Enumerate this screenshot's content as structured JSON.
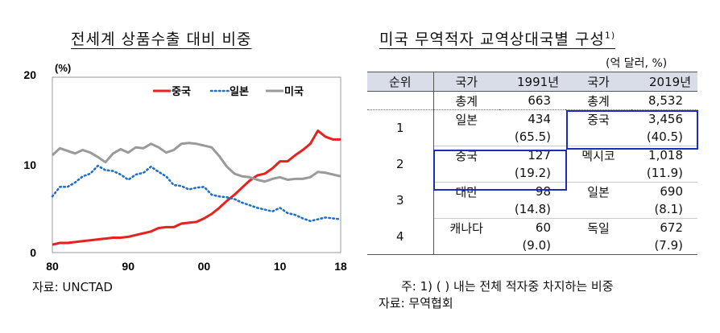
{
  "chart_title": "전세계 상품수출 대비 비중",
  "chart_source": "자료: UNCTAD",
  "table_title": "미국 무역적자 교역상대국별 구성",
  "table_title_sup": "1)",
  "table_unit": "(억 달러, %)",
  "table_note": "주: 1) ( ) 내는 전체 적자중 차지하는 비중",
  "table_source": "자료: 무역협회",
  "table": {
    "headers": [
      "순위",
      "국가",
      "1991년",
      "국가",
      "2019년"
    ],
    "total": {
      "label_1991": "총계",
      "value_1991": "663",
      "label_2019": "총계",
      "value_2019": "8,532"
    },
    "rows": [
      {
        "rank": "1",
        "country_1991": "일본",
        "value_1991": "434",
        "share_1991": "(65.5)",
        "country_2019": "중국",
        "value_2019": "3,456",
        "share_2019": "(40.5)"
      },
      {
        "rank": "2",
        "country_1991": "중국",
        "value_1991": "127",
        "share_1991": "(19.2)",
        "country_2019": "멕시코",
        "value_2019": "1,018",
        "share_2019": "(11.9)"
      },
      {
        "rank": "3",
        "country_1991": "대만",
        "value_1991": "98",
        "share_1991": "(14.8)",
        "country_2019": "일본",
        "value_2019": "690",
        "share_2019": "(8.1)"
      },
      {
        "rank": "4",
        "country_1991": "캐나다",
        "value_1991": "60",
        "share_1991": "(9.0)",
        "country_2019": "독일",
        "value_2019": "672",
        "share_2019": "(7.9)"
      }
    ]
  },
  "chart_data": {
    "type": "line",
    "ylabel": "(%)",
    "ylim": [
      0,
      20
    ],
    "xlim": [
      1980,
      2018
    ],
    "x_ticks": [
      {
        "value": 1980,
        "label": "80"
      },
      {
        "value": 1990,
        "label": "90"
      },
      {
        "value": 2000,
        "label": "00"
      },
      {
        "value": 2010,
        "label": "10"
      },
      {
        "value": 2018,
        "label": "18"
      }
    ],
    "y_ticks": [
      {
        "value": 0,
        "label": "0"
      },
      {
        "value": 10,
        "label": "10"
      },
      {
        "value": 20,
        "label": "20"
      }
    ],
    "legend_position": "top-right",
    "x": [
      1980,
      1981,
      1982,
      1983,
      1984,
      1985,
      1986,
      1987,
      1988,
      1989,
      1990,
      1991,
      1992,
      1993,
      1994,
      1995,
      1996,
      1997,
      1998,
      1999,
      2000,
      2001,
      2002,
      2003,
      2004,
      2005,
      2006,
      2007,
      2008,
      2009,
      2010,
      2011,
      2012,
      2013,
      2014,
      2015,
      2016,
      2017,
      2018
    ],
    "series": [
      {
        "name": "중국",
        "color": "#e8211e",
        "style": "solid",
        "values": [
          0.9,
          1.1,
          1.1,
          1.2,
          1.3,
          1.4,
          1.5,
          1.6,
          1.7,
          1.7,
          1.8,
          2.0,
          2.2,
          2.4,
          2.8,
          2.9,
          2.9,
          3.3,
          3.4,
          3.5,
          3.9,
          4.4,
          5.1,
          5.9,
          6.6,
          7.4,
          8.2,
          8.8,
          9.0,
          9.6,
          10.4,
          10.4,
          11.1,
          11.7,
          12.4,
          13.9,
          13.2,
          12.9,
          12.9
        ]
      },
      {
        "name": "일본",
        "color": "#1f6fc5",
        "style": "dotted",
        "values": [
          6.4,
          7.5,
          7.5,
          8.0,
          8.7,
          9.0,
          9.9,
          9.4,
          9.3,
          8.9,
          8.3,
          8.9,
          9.1,
          9.8,
          9.2,
          8.7,
          7.7,
          7.6,
          7.2,
          7.4,
          7.5,
          6.6,
          6.4,
          6.3,
          6.1,
          5.7,
          5.4,
          5.1,
          4.9,
          4.7,
          5.1,
          4.5,
          4.3,
          3.9,
          3.6,
          3.8,
          4.0,
          3.9,
          3.8
        ]
      },
      {
        "name": "미국",
        "color": "#9a9a9a",
        "style": "solid",
        "values": [
          11.1,
          11.9,
          11.6,
          11.3,
          11.7,
          11.4,
          10.9,
          10.3,
          11.3,
          11.8,
          11.4,
          12.0,
          11.9,
          12.4,
          12.0,
          11.4,
          11.7,
          12.4,
          12.5,
          12.4,
          12.2,
          12.0,
          11.0,
          9.8,
          9.0,
          8.7,
          8.6,
          8.3,
          8.1,
          8.4,
          8.6,
          8.3,
          8.4,
          8.4,
          8.6,
          9.2,
          9.1,
          8.9,
          8.7
        ]
      }
    ]
  }
}
